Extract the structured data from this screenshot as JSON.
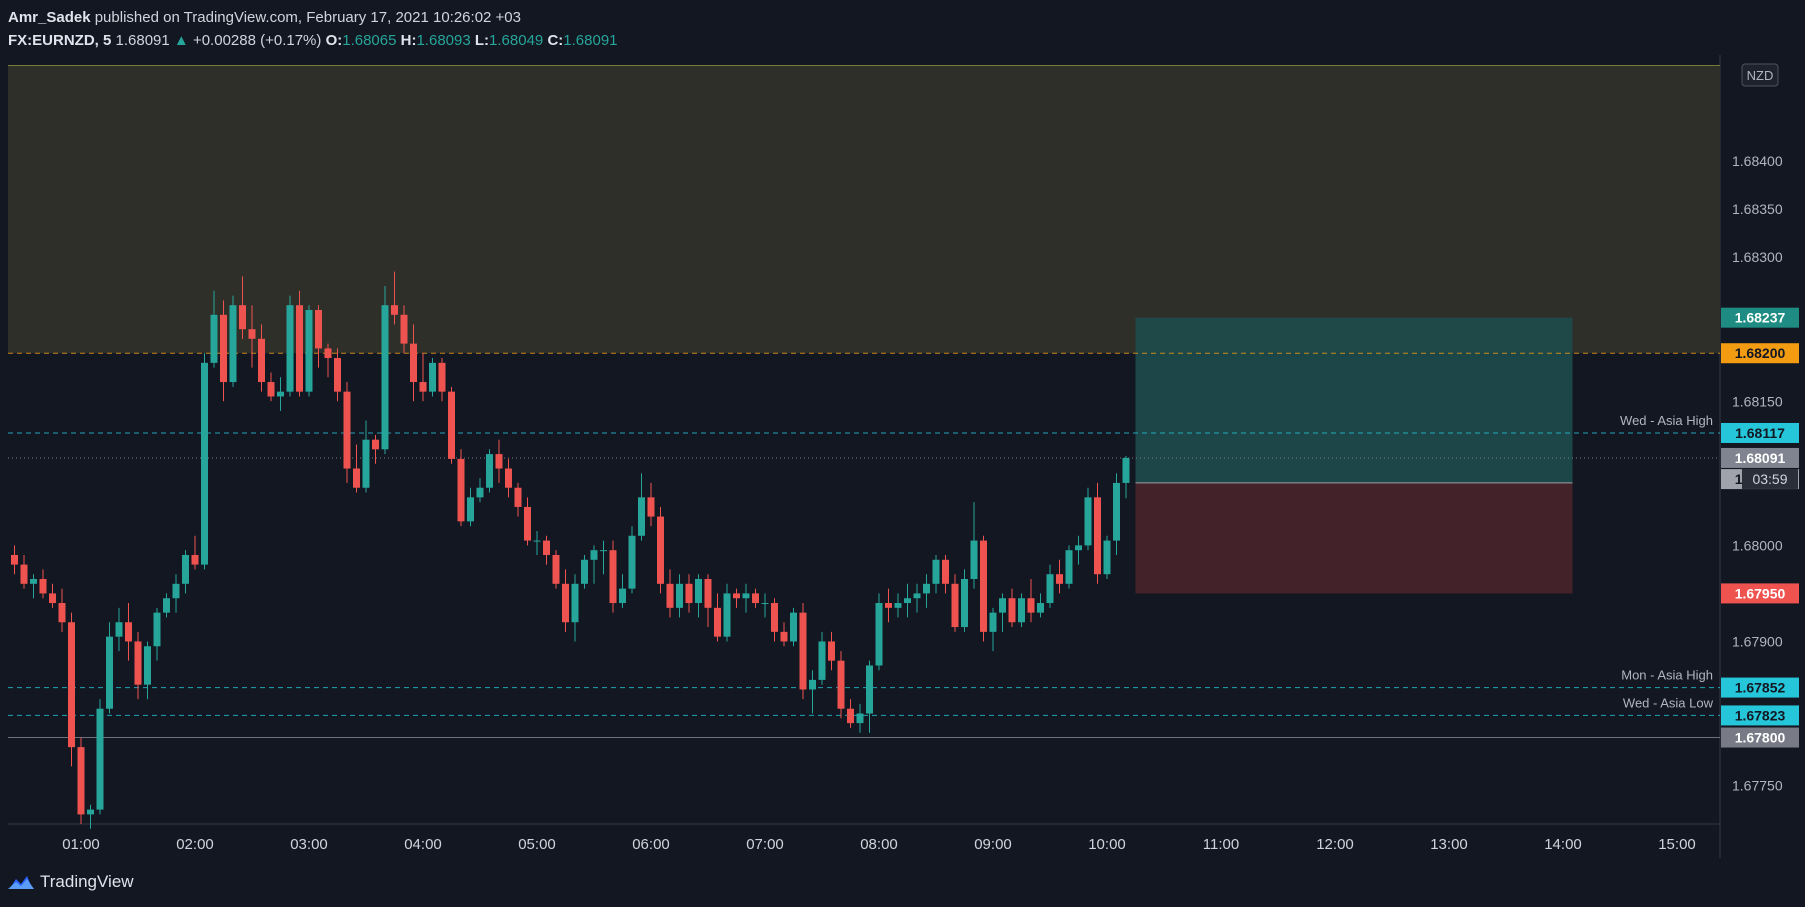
{
  "header": {
    "author": "Amr_Sadek",
    "published": "published on TradingView.com, February 17, 2021 10:26:02 +03",
    "symbol": "FX:EURNZD, 5",
    "last": "1.68091",
    "change_arrow": "▲",
    "change": "+0.00288 (+0.17%)",
    "o_label": "O:",
    "o": "1.68065",
    "h_label": "H:",
    "h": "1.68093",
    "l_label": "L:",
    "l": "1.68049",
    "c_label": "C:",
    "c": "1.68091"
  },
  "footer": {
    "brand": "TradingView"
  },
  "colors": {
    "background": "#131722",
    "up": "#26a69a",
    "down": "#ef5350",
    "zone": "#2f2f2a",
    "target": "#1e4b4c",
    "stop": "#4a242a",
    "level_orange": "#f39c12",
    "level_cyan": "#26c6da",
    "level_grey": "#787b86"
  },
  "chart_data": {
    "type": "candlestick",
    "currency": "NZD",
    "ylim": [
      1.6771,
      1.685
    ],
    "x_ticks": [
      "01:00",
      "02:00",
      "03:00",
      "04:00",
      "05:00",
      "06:00",
      "07:00",
      "08:00",
      "09:00",
      "10:00",
      "11:00",
      "12:00",
      "13:00",
      "14:00",
      "15:00"
    ],
    "y_ticks": [
      "1.67750",
      "1.67900",
      "1.68000",
      "1.68150",
      "1.68300",
      "1.68350",
      "1.68400"
    ],
    "start_time": "00:25",
    "interval_minutes": 5,
    "ohlc": [
      [
        1.6799,
        1.68,
        1.6797,
        1.6798
      ],
      [
        1.6798,
        1.6799,
        1.67955,
        1.6796
      ],
      [
        1.6796,
        1.6797,
        1.67945,
        1.67965
      ],
      [
        1.67965,
        1.67975,
        1.67945,
        1.6795
      ],
      [
        1.6795,
        1.6796,
        1.67935,
        1.6794
      ],
      [
        1.6794,
        1.67955,
        1.6791,
        1.6792
      ],
      [
        1.6792,
        1.6793,
        1.6777,
        1.6779
      ],
      [
        1.6779,
        1.678,
        1.6771,
        1.6772
      ],
      [
        1.6772,
        1.6773,
        1.67705,
        1.67725
      ],
      [
        1.67725,
        1.6784,
        1.6772,
        1.6783
      ],
      [
        1.6783,
        1.6792,
        1.67825,
        1.67905
      ],
      [
        1.67905,
        1.67935,
        1.6789,
        1.6792
      ],
      [
        1.6792,
        1.6794,
        1.6788,
        1.679
      ],
      [
        1.679,
        1.6791,
        1.6784,
        1.67855
      ],
      [
        1.67855,
        1.679,
        1.6784,
        1.67895
      ],
      [
        1.67895,
        1.67935,
        1.6788,
        1.6793
      ],
      [
        1.6793,
        1.6795,
        1.67925,
        1.67945
      ],
      [
        1.67945,
        1.6797,
        1.6793,
        1.6796
      ],
      [
        1.6796,
        1.67995,
        1.6795,
        1.6799
      ],
      [
        1.6799,
        1.6801,
        1.67975,
        1.6798
      ],
      [
        1.6798,
        1.682,
        1.67975,
        1.6819
      ],
      [
        1.6819,
        1.68265,
        1.68185,
        1.6824
      ],
      [
        1.6824,
        1.68255,
        1.6815,
        1.6817
      ],
      [
        1.6817,
        1.6826,
        1.68165,
        1.6825
      ],
      [
        1.6825,
        1.6828,
        1.68215,
        1.68225
      ],
      [
        1.68225,
        1.6825,
        1.68185,
        1.68215
      ],
      [
        1.68215,
        1.6823,
        1.6816,
        1.6817
      ],
      [
        1.6817,
        1.6818,
        1.6815,
        1.68155
      ],
      [
        1.68155,
        1.68175,
        1.6814,
        1.6816
      ],
      [
        1.6816,
        1.6826,
        1.68155,
        1.6825
      ],
      [
        1.6825,
        1.68265,
        1.68155,
        1.6816
      ],
      [
        1.6816,
        1.6825,
        1.68155,
        1.68245
      ],
      [
        1.68245,
        1.6825,
        1.68185,
        1.68205
      ],
      [
        1.68205,
        1.6821,
        1.68175,
        1.68195
      ],
      [
        1.68195,
        1.68205,
        1.6815,
        1.6816
      ],
      [
        1.6816,
        1.6817,
        1.68065,
        1.6808
      ],
      [
        1.6808,
        1.68105,
        1.68055,
        1.6806
      ],
      [
        1.6806,
        1.6813,
        1.68055,
        1.6811
      ],
      [
        1.6811,
        1.68115,
        1.68085,
        1.681
      ],
      [
        1.681,
        1.6827,
        1.68095,
        1.6825
      ],
      [
        1.6825,
        1.68285,
        1.6823,
        1.6824
      ],
      [
        1.6824,
        1.6825,
        1.682,
        1.6821
      ],
      [
        1.6821,
        1.6823,
        1.6815,
        1.6817
      ],
      [
        1.6817,
        1.682,
        1.6815,
        1.6816
      ],
      [
        1.6816,
        1.68195,
        1.68155,
        1.6819
      ],
      [
        1.6819,
        1.68195,
        1.6815,
        1.6816
      ],
      [
        1.6816,
        1.68165,
        1.68085,
        1.6809
      ],
      [
        1.6809,
        1.681,
        1.6802,
        1.68025
      ],
      [
        1.68025,
        1.6806,
        1.6802,
        1.6805
      ],
      [
        1.6805,
        1.6807,
        1.68045,
        1.6806
      ],
      [
        1.6806,
        1.681,
        1.68055,
        1.68095
      ],
      [
        1.68095,
        1.6811,
        1.68065,
        1.6808
      ],
      [
        1.6808,
        1.6809,
        1.6805,
        1.6806
      ],
      [
        1.6806,
        1.68065,
        1.6803,
        1.6804
      ],
      [
        1.6804,
        1.6805,
        1.68,
        1.68005
      ],
      [
        1.68005,
        1.68015,
        1.6799,
        1.68005
      ],
      [
        1.68005,
        1.6801,
        1.6798,
        1.6799
      ],
      [
        1.6799,
        1.67995,
        1.67955,
        1.6796
      ],
      [
        1.6796,
        1.67975,
        1.6791,
        1.6792
      ],
      [
        1.6792,
        1.6797,
        1.679,
        1.6796
      ],
      [
        1.6796,
        1.6799,
        1.67955,
        1.67985
      ],
      [
        1.67985,
        1.68,
        1.6796,
        1.67995
      ],
      [
        1.67995,
        1.68005,
        1.6797,
        1.67995
      ],
      [
        1.67995,
        1.68005,
        1.6793,
        1.6794
      ],
      [
        1.6794,
        1.6797,
        1.67935,
        1.67955
      ],
      [
        1.67955,
        1.6802,
        1.6795,
        1.6801
      ],
      [
        1.6801,
        1.68075,
        1.68005,
        1.6805
      ],
      [
        1.6805,
        1.68065,
        1.6802,
        1.6803
      ],
      [
        1.6803,
        1.6804,
        1.6795,
        1.6796
      ],
      [
        1.6796,
        1.67975,
        1.67925,
        1.67935
      ],
      [
        1.67935,
        1.6797,
        1.67925,
        1.6796
      ],
      [
        1.6796,
        1.6797,
        1.6793,
        1.6794
      ],
      [
        1.6794,
        1.6797,
        1.67925,
        1.67965
      ],
      [
        1.67965,
        1.6797,
        1.67915,
        1.67935
      ],
      [
        1.67935,
        1.6795,
        1.679,
        1.67905
      ],
      [
        1.67905,
        1.6796,
        1.679,
        1.6795
      ],
      [
        1.6795,
        1.67955,
        1.67935,
        1.67945
      ],
      [
        1.67945,
        1.6796,
        1.6793,
        1.6795
      ],
      [
        1.6795,
        1.67955,
        1.67935,
        1.6794
      ],
      [
        1.6794,
        1.6795,
        1.67925,
        1.6794
      ],
      [
        1.6794,
        1.67945,
        1.679,
        1.6791
      ],
      [
        1.6791,
        1.6792,
        1.67895,
        1.679
      ],
      [
        1.679,
        1.67935,
        1.67895,
        1.6793
      ],
      [
        1.6793,
        1.6794,
        1.6784,
        1.6785
      ],
      [
        1.6785,
        1.6787,
        1.67825,
        1.6786
      ],
      [
        1.6786,
        1.6791,
        1.67855,
        1.679
      ],
      [
        1.679,
        1.6791,
        1.6787,
        1.6788
      ],
      [
        1.6788,
        1.6789,
        1.6782,
        1.6783
      ],
      [
        1.6783,
        1.6784,
        1.6781,
        1.67815
      ],
      [
        1.67815,
        1.67835,
        1.67805,
        1.67825
      ],
      [
        1.67825,
        1.6788,
        1.67805,
        1.67875
      ],
      [
        1.67875,
        1.6795,
        1.6787,
        1.6794
      ],
      [
        1.6794,
        1.67955,
        1.6792,
        1.67935
      ],
      [
        1.67935,
        1.6795,
        1.67925,
        1.6794
      ],
      [
        1.6794,
        1.6796,
        1.67925,
        1.67945
      ],
      [
        1.67945,
        1.6796,
        1.6793,
        1.6795
      ],
      [
        1.6795,
        1.6797,
        1.67935,
        1.6796
      ],
      [
        1.6796,
        1.6799,
        1.6795,
        1.67985
      ],
      [
        1.67985,
        1.6799,
        1.6795,
        1.6796
      ],
      [
        1.6796,
        1.6797,
        1.6791,
        1.67915
      ],
      [
        1.67915,
        1.67975,
        1.6791,
        1.67965
      ],
      [
        1.67965,
        1.68045,
        1.67955,
        1.68005
      ],
      [
        1.68005,
        1.6801,
        1.679,
        1.6791
      ],
      [
        1.6791,
        1.67935,
        1.6789,
        1.6793
      ],
      [
        1.6793,
        1.6795,
        1.6791,
        1.67945
      ],
      [
        1.67945,
        1.67955,
        1.67915,
        1.6792
      ],
      [
        1.6792,
        1.6795,
        1.67915,
        1.67945
      ],
      [
        1.67945,
        1.67965,
        1.6792,
        1.6793
      ],
      [
        1.6793,
        1.6795,
        1.67925,
        1.6794
      ],
      [
        1.6794,
        1.6798,
        1.67935,
        1.6797
      ],
      [
        1.6797,
        1.67985,
        1.6795,
        1.6796
      ],
      [
        1.6796,
        1.68,
        1.67955,
        1.67995
      ],
      [
        1.67995,
        1.6801,
        1.6798,
        1.68
      ],
      [
        1.68,
        1.6806,
        1.67995,
        1.6805
      ],
      [
        1.6805,
        1.68065,
        1.6796,
        1.6797
      ],
      [
        1.6797,
        1.6801,
        1.67965,
        1.68005
      ],
      [
        1.68005,
        1.68075,
        1.6799,
        1.68065
      ],
      [
        1.68065,
        1.68093,
        1.68049,
        1.68091
      ]
    ],
    "zone": {
      "from": 1.685,
      "to": 1.682
    },
    "position": {
      "entry": 1.68065,
      "target": 1.68237,
      "stop": 1.6795,
      "start_time": "10:15",
      "end_time": "14:05"
    },
    "levels": [
      {
        "price": 1.682,
        "label": "",
        "tag": "1.68200",
        "style": "dashed",
        "color": "#f39c12",
        "text": "#131722"
      },
      {
        "price": 1.68117,
        "label": "Wed - Asia High",
        "tag": "1.68117",
        "style": "dashed",
        "color": "#26c6da",
        "text": "#131722"
      },
      {
        "price": 1.67852,
        "label": "Mon - Asia High",
        "tag": "1.67852",
        "style": "dashed",
        "color": "#26c6da",
        "text": "#131722"
      },
      {
        "price": 1.67823,
        "label": "Wed - Asia Low",
        "tag": "1.67823",
        "style": "dashed",
        "color": "#26c6da",
        "text": "#131722"
      },
      {
        "price": 1.678,
        "label": "",
        "tag": "1.67800",
        "style": "solid",
        "color": "#787b86",
        "text": "#ffffff"
      }
    ],
    "price_tags": [
      {
        "price": 1.68237,
        "text": "1.68237",
        "color": "#1e8c82",
        "fg": "#ffffff"
      },
      {
        "price": 1.68091,
        "text": "1.68091",
        "color": "#808490",
        "fg": "#ffffff"
      },
      {
        "price": 1.68069,
        "text": "1.68069",
        "color": "#a0a3ab",
        "fg": "#131722"
      },
      {
        "price": 1.6795,
        "text": "1.67950",
        "color": "#ef5350",
        "fg": "#ffffff"
      }
    ],
    "countdown": "03:59"
  }
}
